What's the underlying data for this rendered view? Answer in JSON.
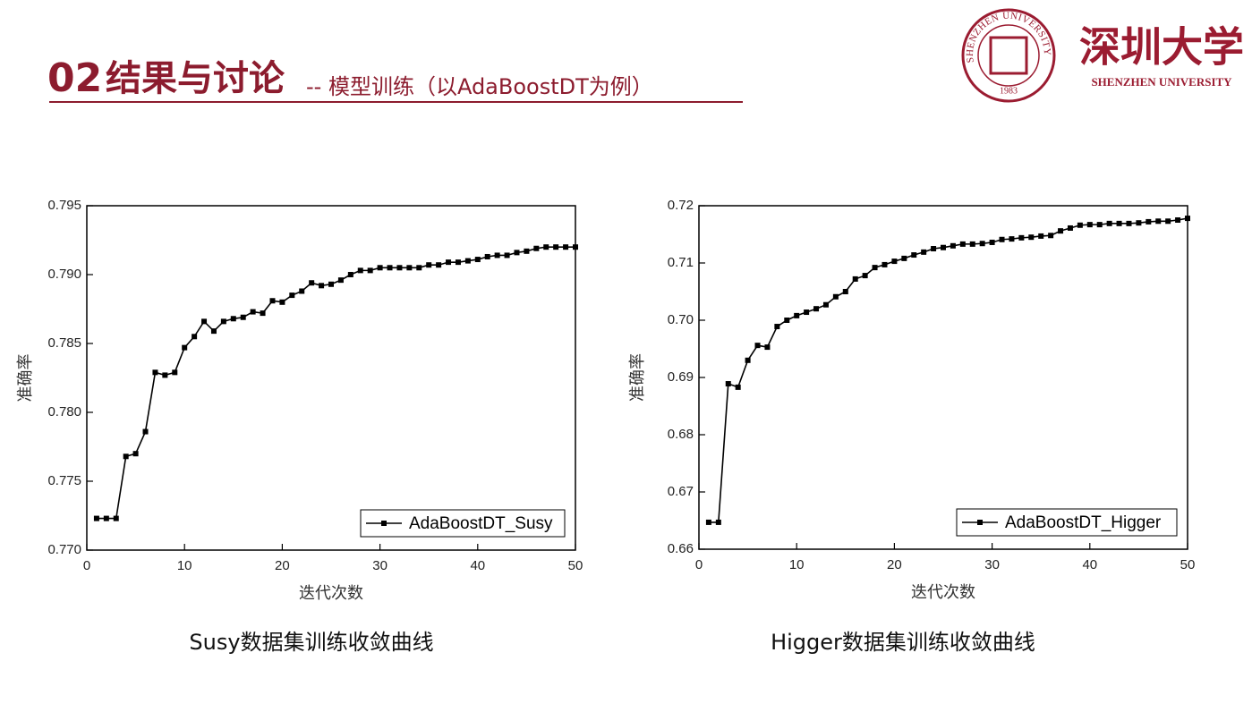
{
  "header": {
    "number": "02",
    "title": "结果与讨论",
    "subtitle": "-- 模型训练（以AdaBoostDT为例）"
  },
  "logo": {
    "name": "深圳大学",
    "name_en": "SHENZHEN UNIVERSITY",
    "seal_text": "SHENZHEN UNIVERSITY",
    "seal_year": "1983"
  },
  "chart_data": [
    {
      "type": "line",
      "caption": "Susy数据集训练收敛曲线",
      "xlabel": "迭代次数",
      "ylabel": "准确率",
      "legend": "lower right",
      "x": [
        1,
        2,
        3,
        4,
        5,
        6,
        7,
        8,
        9,
        10,
        11,
        12,
        13,
        14,
        15,
        16,
        17,
        18,
        19,
        20,
        21,
        22,
        23,
        24,
        25,
        26,
        27,
        28,
        29,
        30,
        31,
        32,
        33,
        34,
        35,
        36,
        37,
        38,
        39,
        40,
        41,
        42,
        43,
        44,
        45,
        46,
        47,
        48,
        49,
        50
      ],
      "series": [
        {
          "name": "AdaBoostDT_Susy",
          "color": "#000000",
          "values": [
            0.7723,
            0.7723,
            0.7723,
            0.7768,
            0.777,
            0.7786,
            0.7829,
            0.7827,
            0.7829,
            0.7847,
            0.7855,
            0.7866,
            0.7859,
            0.7866,
            0.7868,
            0.7869,
            0.7873,
            0.7872,
            0.7881,
            0.788,
            0.7885,
            0.7888,
            0.7894,
            0.7892,
            0.7893,
            0.7896,
            0.79,
            0.7903,
            0.7903,
            0.7905,
            0.7905,
            0.7905,
            0.7905,
            0.7905,
            0.7907,
            0.7907,
            0.7909,
            0.7909,
            0.791,
            0.7911,
            0.7913,
            0.7914,
            0.7914,
            0.7916,
            0.7917,
            0.7919,
            0.792,
            0.792,
            0.792,
            0.792
          ]
        }
      ],
      "xlim": [
        0,
        50
      ],
      "xticks": [
        0,
        10,
        20,
        30,
        40,
        50
      ],
      "ylim": [
        0.77,
        0.795
      ],
      "yticks": [
        {
          "value": 0.77,
          "label": "0.770"
        },
        0.775,
        {
          "value": 0.78,
          "label": "0.780"
        },
        0.785,
        {
          "value": 0.79,
          "label": "0.790"
        },
        0.795
      ]
    },
    {
      "type": "line",
      "caption": "Higger数据集训练收敛曲线",
      "xlabel": "迭代次数",
      "ylabel": "准确率",
      "legend": "lower right",
      "x": [
        1,
        2,
        3,
        4,
        5,
        6,
        7,
        8,
        9,
        10,
        11,
        12,
        13,
        14,
        15,
        16,
        17,
        18,
        19,
        20,
        21,
        22,
        23,
        24,
        25,
        26,
        27,
        28,
        29,
        30,
        31,
        32,
        33,
        34,
        35,
        36,
        37,
        38,
        39,
        40,
        41,
        42,
        43,
        44,
        45,
        46,
        47,
        48,
        49,
        50
      ],
      "series": [
        {
          "name": "AdaBoostDT_Higger",
          "color": "#000000",
          "values": [
            0.6647,
            0.6647,
            0.6889,
            0.6883,
            0.693,
            0.6956,
            0.6953,
            0.6989,
            0.7,
            0.7008,
            0.7014,
            0.702,
            0.7027,
            0.7041,
            0.705,
            0.7072,
            0.7078,
            0.7092,
            0.7097,
            0.7103,
            0.7108,
            0.7114,
            0.7119,
            0.7125,
            0.7127,
            0.713,
            0.7133,
            0.7133,
            0.7134,
            0.7136,
            0.7141,
            0.7142,
            0.7144,
            0.7145,
            0.7147,
            0.7148,
            0.7156,
            0.7161,
            0.7166,
            0.7167,
            0.7167,
            0.7169,
            0.7169,
            0.7169,
            0.717,
            0.7172,
            0.7173,
            0.7173,
            0.7175,
            0.7178
          ]
        }
      ],
      "xlim": [
        0,
        50
      ],
      "xticks": [
        0,
        10,
        20,
        30,
        40,
        50
      ],
      "ylim": [
        0.66,
        0.72
      ],
      "yticks": [
        0.66,
        0.67,
        0.68,
        0.69,
        {
          "value": 0.7,
          "label": "0.70"
        },
        0.71,
        0.72
      ]
    }
  ]
}
